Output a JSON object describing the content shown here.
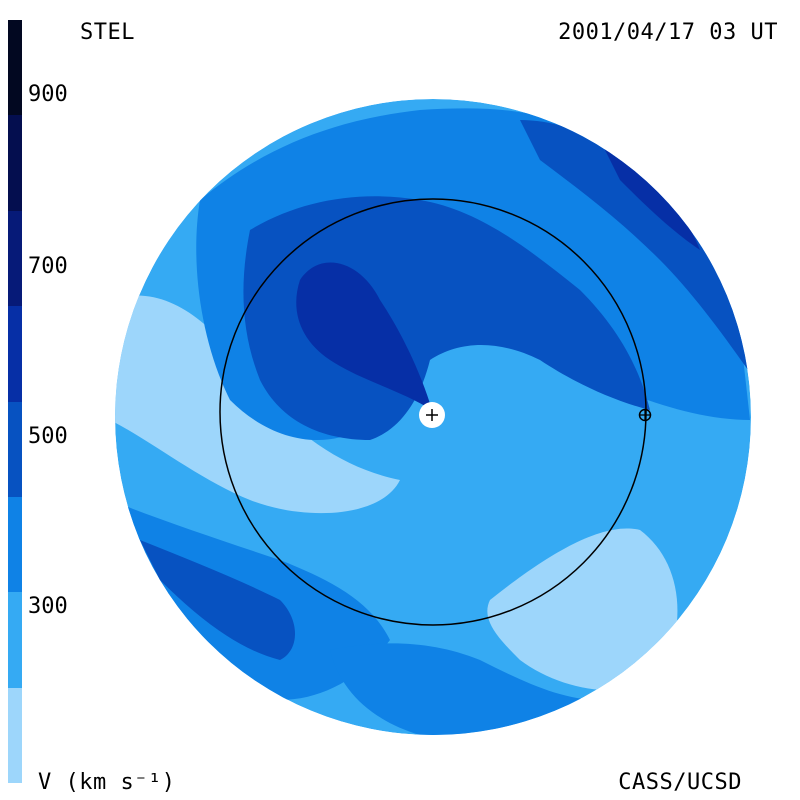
{
  "header": {
    "observatory": "STEL",
    "timestamp": "2001/04/17 03 UT"
  },
  "footer": {
    "units_label": "V (km s⁻¹)",
    "credit": "CASS/UCSD"
  },
  "colorbar": {
    "tick_labels": [
      "900",
      "700",
      "500",
      "300"
    ],
    "bands": [
      {
        "min": 200,
        "max": 300,
        "color": "#9dd6fb"
      },
      {
        "min": 300,
        "max": 400,
        "color": "#35aaf3"
      },
      {
        "min": 400,
        "max": 500,
        "color": "#0f82e6"
      },
      {
        "min": 500,
        "max": 600,
        "color": "#0752c1"
      },
      {
        "min": 600,
        "max": 700,
        "color": "#062fa6"
      },
      {
        "min": 700,
        "max": 800,
        "color": "#061a78"
      },
      {
        "min": 800,
        "max": 900,
        "color": "#040e4f"
      },
      {
        "min": 900,
        "max": 1000,
        "color": "#020821"
      }
    ]
  },
  "colors": {
    "slow_wind": "#9dd6fb",
    "medium_wind": "#35aaf3",
    "fast_wind": "#0f82e6",
    "faster_wind": "#0752c1",
    "fastest_wind": "#062fa6"
  }
}
